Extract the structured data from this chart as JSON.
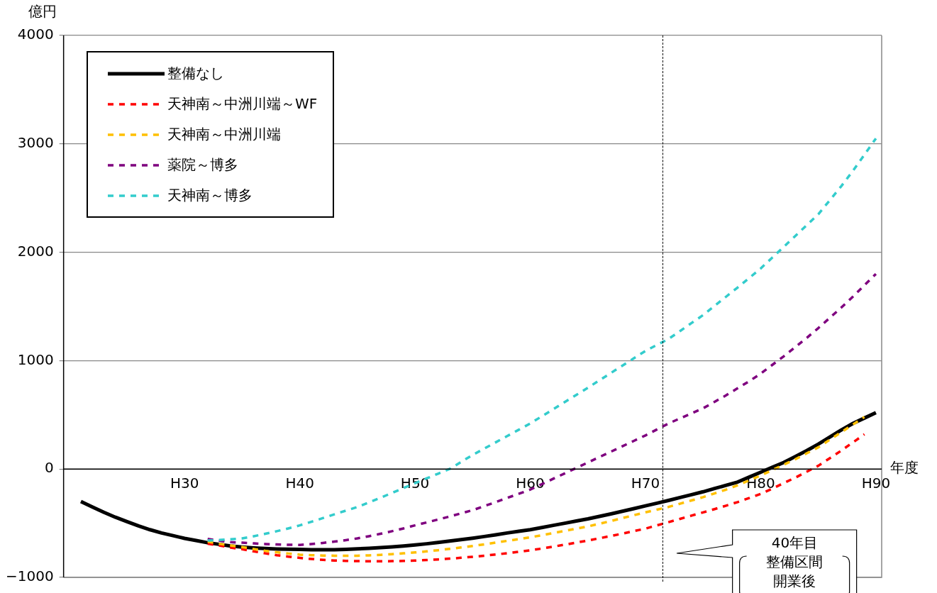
{
  "chart_data": {
    "type": "line",
    "ylabel": "億円",
    "xlabel": "年度",
    "categories": [
      null,
      null,
      null,
      null,
      null,
      null,
      null,
      null,
      null,
      null,
      "H30",
      null,
      null,
      null,
      null,
      null,
      null,
      null,
      null,
      null,
      "H40",
      null,
      null,
      null,
      null,
      null,
      null,
      null,
      null,
      null,
      "H50",
      null,
      null,
      null,
      null,
      null,
      null,
      null,
      null,
      null,
      "H60",
      null,
      null,
      null,
      null,
      null,
      null,
      null,
      null,
      null,
      "H70",
      null,
      null,
      null,
      null,
      null,
      null,
      null,
      null,
      null,
      "H80",
      null,
      null,
      null,
      null,
      null,
      null,
      null,
      null,
      null,
      "H90"
    ],
    "ylim": [
      -1000,
      4000
    ],
    "yticks": [
      -1000,
      0,
      1000,
      2000,
      3000,
      4000
    ],
    "grid": "y",
    "legend": "top left",
    "marker": "none",
    "annotations": [
      "40年目",
      "整備区間",
      "開業後"
    ],
    "series": [
      {
        "name": "整備なし",
        "color": "#000000",
        "line_style": "solid",
        "values": [
          null,
          -300,
          -350,
          -400,
          -445,
          -485,
          -525,
          -560,
          -590,
          -615,
          -640,
          -660,
          -680,
          -695,
          -710,
          -720,
          -728,
          -734,
          -738,
          -740,
          -742,
          -744,
          -745,
          -745,
          -742,
          -737,
          -732,
          -725,
          -718,
          -710,
          -700,
          -690,
          -678,
          -665,
          -652,
          -638,
          -623,
          -607,
          -590,
          -575,
          -560,
          -540,
          -520,
          -500,
          -480,
          -460,
          -437,
          -414,
          -390,
          -365,
          -340,
          -315,
          -290,
          -263,
          -237,
          -210,
          -180,
          -150,
          -120,
          -75,
          -30,
          15,
          60,
          115,
          170,
          230,
          295,
          360,
          420,
          470,
          520
        ]
      },
      {
        "name": "天神南～中洲川端～WF",
        "color": "#ff0000",
        "line_style": "dashed",
        "values": [
          null,
          null,
          null,
          null,
          null,
          null,
          null,
          null,
          null,
          null,
          null,
          null,
          -690,
          -705,
          -725,
          -740,
          -760,
          -778,
          -795,
          -808,
          -820,
          -830,
          -838,
          -844,
          -848,
          -850,
          -851,
          -851,
          -850,
          -848,
          -845,
          -840,
          -834,
          -827,
          -819,
          -810,
          -800,
          -789,
          -777,
          -764,
          -750,
          -734,
          -716,
          -698,
          -679,
          -660,
          -639,
          -618,
          -596,
          -573,
          -550,
          -520,
          -490,
          -460,
          -430,
          -400,
          -370,
          -338,
          -305,
          -268,
          -230,
          -182,
          -130,
          -80,
          -25,
          30,
          100,
          170,
          245,
          320,
          null
        ]
      },
      {
        "name": "天神南～中洲川端",
        "color": "#ffc000",
        "line_style": "dashed",
        "values": [
          null,
          null,
          null,
          null,
          null,
          null,
          null,
          null,
          null,
          null,
          null,
          null,
          -670,
          -690,
          -705,
          -720,
          -738,
          -755,
          -768,
          -780,
          -790,
          -795,
          -798,
          -800,
          -800,
          -800,
          -797,
          -792,
          -786,
          -778,
          -770,
          -760,
          -749,
          -737,
          -724,
          -710,
          -695,
          -679,
          -663,
          -647,
          -630,
          -611,
          -591,
          -571,
          -550,
          -530,
          -505,
          -480,
          -453,
          -426,
          -400,
          -375,
          -350,
          -320,
          -290,
          -260,
          -225,
          -190,
          -150,
          -105,
          -60,
          -10,
          40,
          90,
          145,
          200,
          270,
          340,
          410,
          480,
          null
        ]
      },
      {
        "name": "薬院～博多",
        "color": "#7f007f",
        "line_style": "dashed",
        "values": [
          null,
          null,
          null,
          null,
          null,
          null,
          null,
          null,
          null,
          null,
          null,
          null,
          -645,
          -662,
          -675,
          -680,
          -686,
          -692,
          -696,
          -699,
          -700,
          -692,
          -682,
          -670,
          -656,
          -640,
          -620,
          -598,
          -574,
          -548,
          -520,
          -493,
          -466,
          -438,
          -409,
          -380,
          -343,
          -305,
          -267,
          -229,
          -190,
          -140,
          -90,
          -40,
          10,
          60,
          110,
          160,
          210,
          260,
          310,
          365,
          420,
          467,
          513,
          560,
          620,
          680,
          745,
          810,
          880,
          960,
          1040,
          1125,
          1210,
          1300,
          1395,
          1490,
          1590,
          1695,
          1800
        ]
      },
      {
        "name": "天神南～博多",
        "color": "#33cccc",
        "line_style": "dashed",
        "values": [
          null,
          null,
          null,
          null,
          null,
          null,
          null,
          null,
          null,
          null,
          null,
          null,
          -660,
          -655,
          -648,
          -640,
          -620,
          -598,
          -574,
          -548,
          -520,
          -487,
          -453,
          -418,
          -384,
          -350,
          -308,
          -265,
          -221,
          -176,
          -130,
          -87,
          -43,
          0,
          65,
          130,
          188,
          246,
          304,
          362,
          420,
          486,
          552,
          618,
          684,
          750,
          818,
          886,
          954,
          1022,
          1090,
          1145,
          1200,
          1273,
          1347,
          1420,
          1505,
          1590,
          1675,
          1762,
          1850,
          1950,
          2050,
          2150,
          2250,
          2350,
          2480,
          2610,
          2750,
          2900,
          3050
        ]
      }
    ]
  }
}
